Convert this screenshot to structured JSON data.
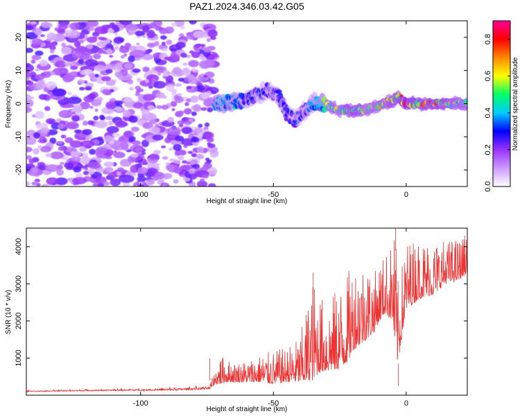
{
  "title": "PAZ1.2024.346.03.42.G05",
  "chart_data": [
    {
      "type": "heatmap",
      "xlabel": "Height of straight line (km)",
      "ylabel": "Frequency (Hz)",
      "xlim": [
        -143,
        23
      ],
      "ylim": [
        -25,
        25
      ],
      "xticks": [
        -100,
        -50,
        0
      ],
      "yticks": [
        -20,
        -10,
        0,
        10,
        20
      ],
      "colorbar": {
        "label": "Normalized spectral amplitude",
        "range": [
          0,
          0.9
        ],
        "ticks": [
          "0.0",
          "0.2",
          "0.4",
          "0.6",
          "0.8"
        ],
        "colors": [
          "#ffffff",
          "#cc99ff",
          "#9933ff",
          "#0000ff",
          "#00ccff",
          "#00ff66",
          "#ffff00",
          "#ff8800",
          "#ff0000",
          "#ff0099"
        ]
      },
      "noise_region": {
        "x": [
          -143,
          -72
        ],
        "freq": [
          -25,
          25
        ],
        "amplitude": [
          0.05,
          0.25
        ]
      },
      "signal_trace": {
        "x": [
          -72,
          -65,
          -60,
          -55,
          -52,
          -48,
          -45,
          -42,
          -38,
          -35,
          -32,
          -28,
          -25,
          -22,
          -18,
          -15,
          -12,
          -8,
          -5,
          -3,
          0,
          5,
          10,
          15,
          20,
          23
        ],
        "freq": [
          0,
          0.5,
          1,
          3,
          4,
          2,
          -3,
          -5,
          -2,
          0,
          0,
          -1,
          -2,
          -2,
          -2,
          -2,
          -1,
          0,
          1,
          2,
          0,
          0,
          0,
          0,
          0,
          0
        ],
        "amplitude": [
          0.4,
          0.45,
          0.3,
          0.3,
          0.25,
          0.3,
          0.3,
          0.3,
          0.3,
          0.4,
          0.5,
          0.6,
          0.6,
          0.7,
          0.7,
          0.6,
          0.6,
          0.65,
          0.7,
          0.7,
          0.8,
          0.7,
          0.75,
          0.7,
          0.6,
          0.6
        ]
      }
    },
    {
      "type": "line",
      "xlabel": "Height of straight line (km)",
      "ylabel": "SNR (10 * v/v)",
      "xlim": [
        -143,
        23
      ],
      "ylim": [
        0,
        4500
      ],
      "xticks": [
        -100,
        -50,
        0
      ],
      "yticks": [
        1000,
        2000,
        3000,
        4000
      ],
      "color": "#ee3333",
      "envelope": {
        "x": [
          -143,
          -120,
          -100,
          -90,
          -80,
          -74,
          -72,
          -70,
          -68,
          -65,
          -60,
          -55,
          -50,
          -45,
          -40,
          -35,
          -33,
          -30,
          -25,
          -22,
          -20,
          -15,
          -12,
          -10,
          -8,
          -5,
          -4,
          -3,
          0,
          5,
          10,
          15,
          20,
          23
        ],
        "base": [
          90,
          110,
          120,
          120,
          140,
          150,
          300,
          300,
          350,
          350,
          350,
          350,
          300,
          350,
          350,
          400,
          600,
          650,
          700,
          900,
          1200,
          1500,
          1700,
          2000,
          2200,
          2000,
          1000,
          900,
          2300,
          2600,
          2700,
          3000,
          3100,
          3300
        ],
        "peak": [
          150,
          170,
          200,
          230,
          260,
          300,
          650,
          1100,
          1000,
          900,
          950,
          1100,
          1200,
          1300,
          1600,
          3200,
          2800,
          2500,
          3000,
          3300,
          3700,
          3700,
          3300,
          3700,
          3800,
          4200,
          4500,
          3000,
          4200,
          4250,
          4200,
          4200,
          4250,
          4300
        ]
      },
      "notable_points": [
        {
          "x": -74,
          "y": 1000
        },
        {
          "x": -35,
          "y": 3300
        },
        {
          "x": -4,
          "y": 4500
        },
        {
          "x": -3,
          "y": 850
        },
        {
          "x": 22,
          "y": 4300
        }
      ]
    }
  ]
}
